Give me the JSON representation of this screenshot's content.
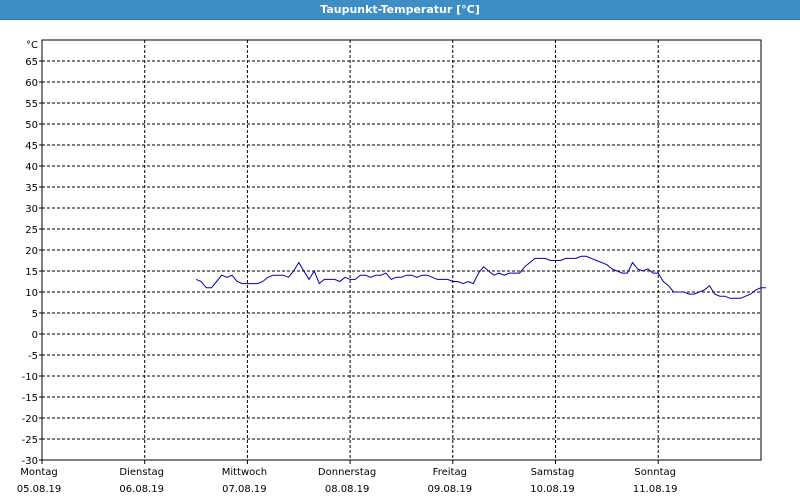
{
  "window": {
    "title": "Taupunkt-Temperatur [°C]"
  },
  "chart_data": {
    "type": "line",
    "title": "Taupunkt-Temperatur [°C]",
    "ylabel": "°C",
    "xlabel": "",
    "ylim": [
      -30,
      70
    ],
    "yticks": [
      65,
      60,
      55,
      50,
      45,
      40,
      35,
      30,
      25,
      20,
      15,
      10,
      5,
      0,
      -5,
      -10,
      -15,
      -20,
      -25,
      -30
    ],
    "xlim": [
      0,
      7
    ],
    "grid": true,
    "days": [
      {
        "weekday": "Montag",
        "date": "05.08.19"
      },
      {
        "weekday": "Dienstag",
        "date": "06.08.19"
      },
      {
        "weekday": "Mittwoch",
        "date": "07.08.19"
      },
      {
        "weekday": "Donnerstag",
        "date": "08.08.19"
      },
      {
        "weekday": "Freitag",
        "date": "09.08.19"
      },
      {
        "weekday": "Samstag",
        "date": "10.08.19"
      },
      {
        "weekday": "Sonntag",
        "date": "11.08.19"
      }
    ],
    "series": [
      {
        "color": "#0000aa",
        "points": [
          [
            1.5,
            13.0
          ],
          [
            1.55,
            12.5
          ],
          [
            1.6,
            11.0
          ],
          [
            1.65,
            11.0
          ],
          [
            1.7,
            12.5
          ],
          [
            1.75,
            14.0
          ],
          [
            1.8,
            13.5
          ],
          [
            1.85,
            14.0
          ],
          [
            1.9,
            12.5
          ],
          [
            1.95,
            12.0
          ],
          [
            2.0,
            12.0
          ],
          [
            2.05,
            12.0
          ],
          [
            2.1,
            12.0
          ],
          [
            2.15,
            12.5
          ],
          [
            2.2,
            13.5
          ],
          [
            2.25,
            14.0
          ],
          [
            2.3,
            14.0
          ],
          [
            2.35,
            14.0
          ],
          [
            2.4,
            13.5
          ],
          [
            2.45,
            15.0
          ],
          [
            2.5,
            17.0
          ],
          [
            2.55,
            15.0
          ],
          [
            2.6,
            13.0
          ],
          [
            2.65,
            15.0
          ],
          [
            2.7,
            12.0
          ],
          [
            2.75,
            13.0
          ],
          [
            2.8,
            13.0
          ],
          [
            2.85,
            13.0
          ],
          [
            2.9,
            12.5
          ],
          [
            2.95,
            13.5
          ],
          [
            3.0,
            13.0
          ],
          [
            3.05,
            13.0
          ],
          [
            3.1,
            14.0
          ],
          [
            3.15,
            14.0
          ],
          [
            3.2,
            13.5
          ],
          [
            3.25,
            14.0
          ],
          [
            3.3,
            14.0
          ],
          [
            3.35,
            14.5
          ],
          [
            3.4,
            13.0
          ],
          [
            3.45,
            13.5
          ],
          [
            3.5,
            13.5
          ],
          [
            3.55,
            14.0
          ],
          [
            3.6,
            14.0
          ],
          [
            3.65,
            13.5
          ],
          [
            3.7,
            14.0
          ],
          [
            3.75,
            14.0
          ],
          [
            3.8,
            13.5
          ],
          [
            3.85,
            13.0
          ],
          [
            3.9,
            13.0
          ],
          [
            3.95,
            13.0
          ],
          [
            4.0,
            12.5
          ],
          [
            4.05,
            12.5
          ],
          [
            4.1,
            12.0
          ],
          [
            4.15,
            12.5
          ],
          [
            4.2,
            12.0
          ],
          [
            4.25,
            14.5
          ],
          [
            4.3,
            16.0
          ],
          [
            4.35,
            15.0
          ],
          [
            4.4,
            14.0
          ],
          [
            4.45,
            14.5
          ],
          [
            4.5,
            14.0
          ],
          [
            4.55,
            14.5
          ],
          [
            4.6,
            14.5
          ],
          [
            4.65,
            14.5
          ],
          [
            4.7,
            16.0
          ],
          [
            4.75,
            17.0
          ],
          [
            4.8,
            18.0
          ],
          [
            4.85,
            18.0
          ],
          [
            4.9,
            18.0
          ],
          [
            4.95,
            17.5
          ],
          [
            5.0,
            17.5
          ],
          [
            5.05,
            17.5
          ],
          [
            5.1,
            18.0
          ],
          [
            5.15,
            18.0
          ],
          [
            5.2,
            18.0
          ],
          [
            5.25,
            18.5
          ],
          [
            5.3,
            18.5
          ],
          [
            5.35,
            18.0
          ],
          [
            5.4,
            17.5
          ],
          [
            5.45,
            17.0
          ],
          [
            5.5,
            16.5
          ],
          [
            5.55,
            15.5
          ],
          [
            5.6,
            15.0
          ],
          [
            5.65,
            14.5
          ],
          [
            5.7,
            14.5
          ],
          [
            5.75,
            17.0
          ],
          [
            5.8,
            15.5
          ],
          [
            5.85,
            15.0
          ],
          [
            5.9,
            15.5
          ],
          [
            5.95,
            14.5
          ],
          [
            6.0,
            14.5
          ],
          [
            6.05,
            12.5
          ],
          [
            6.1,
            11.5
          ],
          [
            6.15,
            10.0
          ],
          [
            6.2,
            10.0
          ],
          [
            6.25,
            10.0
          ],
          [
            6.3,
            9.5
          ],
          [
            6.35,
            9.5
          ],
          [
            6.4,
            10.0
          ],
          [
            6.45,
            10.5
          ],
          [
            6.5,
            11.5
          ],
          [
            6.55,
            9.5
          ],
          [
            6.6,
            9.0
          ],
          [
            6.65,
            9.0
          ],
          [
            6.7,
            8.5
          ],
          [
            6.75,
            8.5
          ],
          [
            6.8,
            8.5
          ],
          [
            6.85,
            9.0
          ],
          [
            6.9,
            9.5
          ],
          [
            6.95,
            10.5
          ],
          [
            7.0,
            11.0
          ],
          [
            7.05,
            11.0
          ]
        ]
      }
    ]
  }
}
